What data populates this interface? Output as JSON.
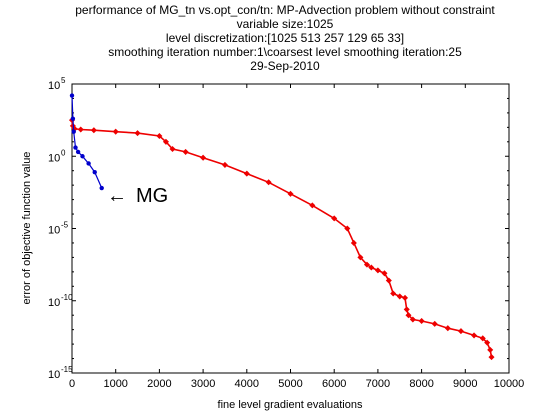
{
  "chart_data": {
    "type": "line",
    "title_lines": [
      "performance of MG_tn vs.opt_con/tn: MP-Advection problem without constraint",
      "variable size:1025",
      "level discretization:[1025 513 257 129 65 33]",
      "smoothing iteration number:1\\coarsest level smoothing iteration:25",
      "29-Sep-2010"
    ],
    "xlabel": "fine level gradient evaluations",
    "ylabel": "error of objective function value",
    "xlim": [
      0,
      10000
    ],
    "ylim_log10": [
      -15,
      5
    ],
    "yscale": "log",
    "x_ticks": [
      0,
      1000,
      2000,
      3000,
      4000,
      5000,
      6000,
      7000,
      8000,
      9000,
      10000
    ],
    "x_tick_labels": [
      "0",
      "1000",
      "2000",
      "3000",
      "4000",
      "5000",
      "6000",
      "7000",
      "8000",
      "9000",
      "10000"
    ],
    "y_ticks_log10": [
      -15,
      -10,
      -5,
      0,
      5
    ],
    "y_tick_base": "10",
    "y_tick_exponents": [
      "-15",
      "-10",
      "-5",
      "0",
      "5"
    ],
    "grid": false,
    "annotation": {
      "text": "MG",
      "arrow": "←"
    },
    "series": [
      {
        "color": "#0000cc",
        "marker": "dot",
        "x": [
          0,
          20,
          40,
          80,
          140,
          240,
          380,
          520,
          680
        ],
        "y_log10": [
          4.2,
          2.6,
          1.7,
          0.6,
          0.3,
          0.0,
          -0.5,
          -1.1,
          -2.2
        ]
      },
      {
        "color": "#ee0000",
        "marker": "diamond",
        "x": [
          0,
          20,
          60,
          200,
          500,
          1000,
          1500,
          2000,
          2150,
          2300,
          2600,
          3000,
          3500,
          4000,
          4500,
          5000,
          5500,
          6000,
          6300,
          6450,
          6600,
          6750,
          6850,
          7000,
          7150,
          7250,
          7350,
          7500,
          7620,
          7660,
          7700,
          7800,
          8000,
          8300,
          8600,
          8900,
          9200,
          9400,
          9500,
          9570,
          9600
        ],
        "y_log10": [
          2.5,
          2.1,
          1.9,
          1.85,
          1.8,
          1.7,
          1.6,
          1.4,
          1.0,
          0.5,
          0.3,
          -0.1,
          -0.6,
          -1.2,
          -1.8,
          -2.6,
          -3.4,
          -4.3,
          -5.0,
          -6.0,
          -7.0,
          -7.5,
          -7.7,
          -7.9,
          -8.1,
          -8.6,
          -9.5,
          -9.7,
          -9.8,
          -10.6,
          -11.0,
          -11.3,
          -11.4,
          -11.6,
          -11.9,
          -12.1,
          -12.4,
          -12.6,
          -12.9,
          -13.4,
          -13.9
        ]
      }
    ]
  }
}
